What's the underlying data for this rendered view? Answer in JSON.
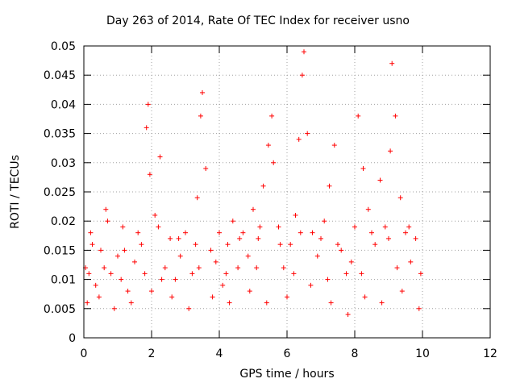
{
  "chart_data": {
    "type": "scatter",
    "title": "Day 263 of 2014, Rate Of TEC Index for receiver usno",
    "xlabel": "GPS time / hours",
    "ylabel": "ROTI / TECUs",
    "xlim": [
      0,
      12
    ],
    "ylim": [
      0,
      0.05
    ],
    "xticks": [
      0,
      2,
      4,
      6,
      8,
      10,
      12
    ],
    "yticks": [
      0,
      0.005,
      0.01,
      0.015,
      0.02,
      0.025,
      0.03,
      0.035,
      0.04,
      0.045,
      0.05
    ],
    "grid": true,
    "marker": "+",
    "color": "#ff0000",
    "series": [
      {
        "name": "ROTI",
        "x": [
          0.05,
          0.2,
          0.35,
          0.5,
          0.65,
          0.8,
          1.0,
          1.15,
          1.3,
          1.5,
          1.7,
          1.85,
          1.9,
          1.95,
          2.1,
          2.25,
          2.4,
          2.55,
          2.7,
          2.85,
          3.0,
          3.2,
          3.35,
          3.45,
          3.5,
          3.6,
          3.75,
          3.9,
          4.1,
          4.25,
          4.4,
          4.55,
          4.7,
          4.85,
          5.0,
          5.15,
          5.3,
          5.45,
          5.55,
          5.6,
          5.75,
          5.9,
          6.1,
          6.25,
          6.35,
          6.45,
          6.5,
          6.6,
          6.75,
          6.9,
          7.1,
          7.25,
          7.4,
          7.6,
          7.75,
          7.9,
          8.1,
          8.25,
          8.4,
          8.6,
          8.75,
          8.9,
          9.05,
          9.1,
          9.2,
          9.35,
          9.5,
          9.65,
          9.8,
          9.95,
          0.1,
          0.45,
          0.9,
          1.4,
          2.0,
          2.6,
          3.1,
          3.8,
          4.3,
          4.9,
          5.4,
          6.0,
          6.7,
          7.3,
          7.8,
          8.3,
          8.8,
          9.4,
          9.9,
          0.25,
          0.7,
          1.2,
          1.6,
          2.2,
          2.8,
          3.3,
          4.0,
          4.6,
          5.2,
          5.8,
          6.4,
          7.0,
          7.5,
          8.0,
          8.5,
          9.0,
          9.6,
          0.15,
          0.6,
          1.1,
          1.8,
          2.3,
          3.4,
          4.2,
          5.1,
          6.2,
          7.2,
          8.2,
          9.25
        ],
        "y": [
          0.012,
          0.018,
          0.009,
          0.015,
          0.022,
          0.011,
          0.014,
          0.019,
          0.008,
          0.013,
          0.016,
          0.036,
          0.04,
          0.028,
          0.021,
          0.031,
          0.012,
          0.017,
          0.01,
          0.014,
          0.018,
          0.011,
          0.024,
          0.038,
          0.042,
          0.029,
          0.015,
          0.013,
          0.009,
          0.016,
          0.02,
          0.012,
          0.018,
          0.014,
          0.022,
          0.017,
          0.026,
          0.033,
          0.038,
          0.03,
          0.019,
          0.012,
          0.016,
          0.021,
          0.034,
          0.045,
          0.049,
          0.035,
          0.018,
          0.014,
          0.02,
          0.026,
          0.033,
          0.015,
          0.011,
          0.013,
          0.038,
          0.029,
          0.022,
          0.016,
          0.027,
          0.019,
          0.032,
          0.047,
          0.038,
          0.024,
          0.018,
          0.013,
          0.017,
          0.011,
          0.006,
          0.007,
          0.005,
          0.006,
          0.008,
          0.007,
          0.005,
          0.007,
          0.006,
          0.008,
          0.006,
          0.007,
          0.009,
          0.006,
          0.004,
          0.007,
          0.006,
          0.008,
          0.005,
          0.016,
          0.02,
          0.015,
          0.018,
          0.019,
          0.017,
          0.016,
          0.018,
          0.017,
          0.019,
          0.016,
          0.018,
          0.017,
          0.016,
          0.019,
          0.018,
          0.017,
          0.019,
          0.011,
          0.012,
          0.01,
          0.011,
          0.01,
          0.012,
          0.011,
          0.012,
          0.011,
          0.01,
          0.011,
          0.012
        ]
      }
    ]
  }
}
